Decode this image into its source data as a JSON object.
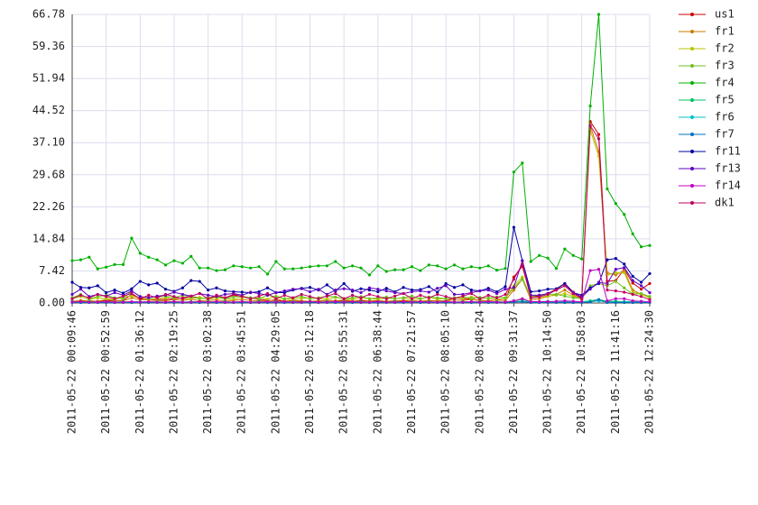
{
  "chart_data": {
    "type": "line",
    "categories": [
      "2011-05-22 00:09:46",
      null,
      null,
      null,
      "2011-05-22 00:52:59",
      null,
      null,
      null,
      "2011-05-22 01:36:12",
      null,
      null,
      null,
      "2011-05-22 02:19:25",
      null,
      null,
      null,
      "2011-05-22 03:02:38",
      null,
      null,
      null,
      "2011-05-22 03:45:51",
      null,
      null,
      null,
      "2011-05-22 04:29:05",
      null,
      null,
      null,
      "2011-05-22 05:12:18",
      null,
      null,
      null,
      "2011-05-22 05:55:31",
      null,
      null,
      null,
      "2011-05-22 06:38:44",
      null,
      null,
      null,
      "2011-05-22 07:21:57",
      null,
      null,
      null,
      "2011-05-22 08:05:10",
      null,
      null,
      null,
      "2011-05-22 08:48:24",
      null,
      null,
      null,
      "2011-05-22 09:31:37",
      null,
      null,
      null,
      "2011-05-22 10:14:50",
      null,
      null,
      null,
      "2011-05-22 10:58:03",
      null,
      null,
      null,
      "2011-05-22 11:41:16",
      null,
      null,
      null,
      "2011-05-22 12:24:30"
    ],
    "ylim": [
      0,
      66.78
    ],
    "yticks": [
      {
        "value": 0,
        "label": "0.00"
      },
      7.42,
      14.84,
      22.26,
      29.68,
      {
        "value": 37.1,
        "label": "37.10"
      },
      44.52,
      51.94,
      59.36,
      66.78
    ],
    "grid": true,
    "series": [
      {
        "name": "us1",
        "color": "#cc0000",
        "values": [
          0.4,
          0.5,
          0.5,
          0.4,
          0.5,
          0.5,
          0.6,
          2.0,
          1.0,
          0.8,
          0.8,
          0.8,
          1.0,
          1.2,
          1.5,
          1.2,
          1.0,
          1.5,
          1.2,
          1.8,
          1.4,
          1.2,
          0.8,
          0.6,
          0.6,
          0.5,
          0.5,
          0.4,
          0.4,
          0.4,
          0.6,
          0.5,
          0.5,
          0.4,
          0.6,
          0.5,
          0.4,
          0.4,
          0.5,
          0.4,
          0.5,
          0.4,
          0.5,
          0.5,
          0.5,
          1.2,
          1.0,
          0.9,
          0.6,
          0.5,
          0.7,
          0.6,
          6.0,
          8.5,
          1.5,
          1.6,
          2.2,
          3.2,
          4.5,
          2.5,
          1.2,
          42.0,
          39.0,
          5.0,
          5.2,
          7.8,
          4.6,
          3.2,
          4.5
        ]
      },
      {
        "name": "fr1",
        "color": "#cc7a00",
        "values": [
          0.3,
          0.6,
          0.5,
          0.4,
          0.8,
          0.6,
          0.5,
          1.2,
          0.8,
          0.7,
          0.6,
          0.5,
          0.8,
          0.6,
          0.9,
          0.5,
          0.6,
          0.7,
          0.5,
          0.6,
          0.8,
          0.6,
          0.5,
          0.4,
          0.9,
          0.5,
          0.6,
          0.5,
          0.4,
          0.5,
          0.6,
          0.5,
          0.7,
          0.5,
          0.4,
          0.5,
          0.6,
          0.4,
          0.5,
          0.6,
          0.5,
          0.4,
          0.6,
          0.5,
          0.5,
          0.7,
          0.6,
          0.8,
          0.6,
          0.5,
          0.7,
          0.6,
          3.0,
          5.5,
          0.8,
          1.0,
          1.5,
          2.0,
          3.0,
          1.8,
          0.8,
          41.0,
          35.0,
          7.0,
          6.5,
          7.5,
          3.0,
          2.0,
          1.5
        ]
      },
      {
        "name": "fr2",
        "color": "#b8c400",
        "values": [
          1.0,
          1.5,
          0.8,
          1.2,
          1.0,
          0.8,
          1.4,
          1.6,
          1.2,
          0.9,
          1.0,
          1.2,
          1.4,
          1.0,
          1.1,
          1.3,
          0.9,
          1.2,
          1.0,
          0.8,
          1.4,
          1.0,
          1.2,
          0.9,
          1.6,
          1.0,
          0.8,
          1.1,
          1.2,
          1.0,
          0.9,
          1.3,
          1.0,
          0.8,
          1.2,
          1.0,
          0.9,
          1.1,
          1.0,
          1.2,
          0.8,
          1.0,
          1.3,
          0.9,
          1.0,
          1.2,
          1.1,
          1.4,
          1.0,
          1.2,
          0.9,
          1.1,
          4.0,
          6.0,
          1.2,
          1.4,
          1.6,
          1.8,
          2.2,
          1.5,
          1.0,
          40.0,
          34.0,
          6.5,
          7.0,
          7.0,
          2.5,
          2.0,
          1.2
        ]
      },
      {
        "name": "fr3",
        "color": "#70c020",
        "values": [
          1.2,
          2.0,
          1.0,
          1.5,
          1.8,
          1.2,
          1.0,
          2.8,
          1.5,
          1.2,
          1.4,
          1.6,
          1.2,
          1.8,
          1.4,
          1.0,
          1.2,
          1.5,
          1.0,
          1.4,
          1.6,
          1.2,
          1.0,
          1.8,
          1.4,
          1.0,
          1.2,
          1.5,
          1.0,
          1.2,
          1.6,
          1.4,
          1.0,
          1.2,
          1.5,
          1.0,
          1.2,
          1.4,
          1.0,
          1.2,
          1.6,
          1.0,
          1.4,
          1.2,
          1.0,
          1.2,
          1.5,
          1.0,
          1.3,
          1.1,
          1.4,
          1.2,
          3.5,
          5.5,
          1.5,
          1.8,
          2.0,
          2.0,
          1.6,
          1.2,
          1.0,
          4.0,
          4.5,
          4.0,
          5.0,
          3.5,
          2.0,
          2.2,
          1.5
        ]
      },
      {
        "name": "fr4",
        "color": "#00b000",
        "values": [
          9.8,
          10,
          10.6,
          7.9,
          8.3,
          8.9,
          8.9,
          15,
          11.5,
          10.6,
          10,
          8.8,
          9.8,
          9.2,
          10.8,
          8.1,
          8.1,
          7.5,
          7.7,
          8.6,
          8.4,
          8.1,
          8.4,
          6.7,
          9.6,
          7.9,
          7.9,
          8.1,
          8.4,
          8.6,
          8.6,
          9.6,
          8.1,
          8.6,
          8.1,
          6.5,
          8.6,
          7.3,
          7.7,
          7.7,
          8.4,
          7.5,
          8.8,
          8.6,
          7.9,
          8.8,
          7.9,
          8.4,
          8.1,
          8.6,
          7.6,
          8.0,
          30.3,
          32.4,
          9.6,
          11,
          10.4,
          8,
          12.5,
          11,
          10.2,
          45.6,
          66.78,
          26.4,
          23,
          20.5,
          16,
          13,
          13.3
        ]
      },
      {
        "name": "fr5",
        "color": "#00c060",
        "values": [
          0.3,
          0.2,
          0.3,
          0.2,
          0.3,
          0.2,
          0.3,
          0.2,
          0.3,
          0.2,
          0.3,
          0.2,
          0.3,
          0.2,
          0.3,
          0.2,
          0.3,
          0.2,
          0.3,
          0.2,
          0.3,
          0.2,
          0.3,
          0.2,
          0.3,
          0.2,
          0.3,
          0.2,
          0.3,
          0.2,
          0.3,
          0.2,
          0.3,
          0.2,
          0.3,
          0.2,
          0.3,
          0.2,
          0.3,
          0.2,
          0.3,
          0.2,
          0.3,
          0.2,
          0.3,
          0.2,
          0.3,
          0.2,
          0.3,
          0.2,
          0.3,
          0.2,
          0.5,
          0.8,
          0.3,
          0.3,
          0.4,
          0.3,
          0.4,
          0.3,
          0.3,
          0.5,
          0.8,
          0.4,
          0.4,
          0.3,
          0.3,
          0.3,
          0.3
        ]
      },
      {
        "name": "fr6",
        "color": "#00c0c0",
        "values": [
          0.2,
          0.1,
          0.2,
          0.1,
          0.2,
          0.1,
          0.2,
          0.1,
          0.2,
          0.1,
          0.2,
          0.1,
          0.2,
          0.1,
          0.2,
          0.1,
          0.2,
          0.1,
          0.2,
          0.1,
          0.2,
          0.1,
          0.2,
          0.1,
          0.2,
          0.1,
          0.2,
          0.1,
          0.2,
          0.1,
          0.2,
          0.1,
          0.2,
          0.1,
          0.2,
          0.1,
          0.2,
          0.1,
          0.2,
          0.1,
          0.2,
          0.1,
          0.2,
          0.1,
          0.2,
          0.1,
          0.2,
          0.1,
          0.2,
          0.1,
          0.2,
          0.1,
          0.3,
          0.4,
          0.2,
          0.2,
          0.2,
          0.2,
          0.2,
          0.2,
          0.2,
          0.3,
          0.5,
          0.2,
          0.2,
          0.2,
          0.2,
          0.2,
          0.2
        ]
      },
      {
        "name": "fr7",
        "color": "#0070c0",
        "values": [
          0.1,
          0.1,
          0.1,
          0.1,
          0.1,
          0.1,
          0.1,
          0.1,
          0.1,
          0.1,
          0.1,
          0.1,
          0.1,
          0.1,
          0.1,
          0.1,
          0.1,
          0.1,
          0.1,
          0.1,
          0.1,
          0.1,
          0.1,
          0.1,
          0.1,
          0.1,
          0.1,
          0.1,
          0.1,
          0.1,
          0.1,
          0.1,
          0.1,
          0.1,
          0.1,
          0.1,
          0.1,
          0.1,
          0.1,
          0.1,
          0.1,
          0.1,
          0.1,
          0.1,
          0.1,
          0.1,
          0.1,
          0.1,
          0.1,
          0.1,
          0.1,
          0.1,
          0.2,
          0.3,
          0.1,
          0.1,
          0.1,
          0.1,
          0.1,
          0.1,
          0.1,
          0.2,
          0.8,
          0.1,
          0.1,
          0.1,
          0.1,
          0.1,
          0.1
        ]
      },
      {
        "name": "fr11",
        "color": "#0000a0",
        "values": [
          4.8,
          3.6,
          3.5,
          4.0,
          2.4,
          3.0,
          2.3,
          3.3,
          5.0,
          4.2,
          4.6,
          3.2,
          2.7,
          3.5,
          5.2,
          5.0,
          3.0,
          3.5,
          2.8,
          2.6,
          2.5,
          2.4,
          2.6,
          3.5,
          2.4,
          2.4,
          3.0,
          3.4,
          3.6,
          3.0,
          4.2,
          2.8,
          4.5,
          2.7,
          3.3,
          3.0,
          2.6,
          3.4,
          2.6,
          3.6,
          3.0,
          3.1,
          3.8,
          2.5,
          4.5,
          3.6,
          4.2,
          3.0,
          2.8,
          3.4,
          2.6,
          3.8,
          17.5,
          9.8,
          2.6,
          2.8,
          3.2,
          3.3,
          4.5,
          2.4,
          1.8,
          3.5,
          4.5,
          10.0,
          10.3,
          9.0,
          6.2,
          4.8,
          6.8
        ]
      },
      {
        "name": "fr13",
        "color": "#6000c0",
        "values": [
          2.0,
          3.2,
          1.5,
          2.0,
          1.6,
          2.4,
          1.8,
          2.8,
          1.5,
          1.2,
          1.6,
          1.8,
          2.5,
          2.0,
          1.6,
          2.2,
          1.8,
          1.5,
          2.0,
          2.2,
          1.8,
          2.5,
          2.2,
          1.8,
          2.4,
          2.8,
          3.2,
          3.3,
          2.6,
          3.2,
          2.0,
          3.0,
          3.3,
          3.0,
          2.4,
          3.5,
          3.2,
          2.8,
          2.4,
          2.2,
          2.6,
          2.8,
          2.5,
          3.4,
          4.0,
          2.0,
          2.0,
          2.4,
          2.8,
          3.0,
          2.2,
          3.2,
          3.6,
          9.8,
          1.8,
          1.8,
          2.2,
          3.0,
          4.0,
          2.4,
          1.4,
          3.2,
          4.8,
          4.5,
          7.8,
          8.2,
          5.2,
          4.0,
          2.4
        ]
      },
      {
        "name": "fr14",
        "color": "#c000c0",
        "values": [
          0.2,
          0.3,
          0.2,
          0.2,
          0.3,
          0.2,
          0.2,
          0.3,
          0.2,
          0.3,
          0.2,
          0.2,
          0.3,
          0.2,
          0.2,
          0.3,
          0.2,
          0.3,
          0.2,
          0.2,
          0.3,
          0.2,
          0.2,
          0.3,
          0.2,
          0.3,
          0.2,
          0.2,
          0.3,
          0.2,
          0.2,
          0.3,
          0.2,
          0.3,
          0.2,
          0.2,
          0.3,
          0.2,
          0.2,
          0.3,
          0.2,
          0.3,
          0.2,
          0.2,
          0.3,
          0.2,
          0.2,
          0.3,
          0.2,
          0.3,
          0.2,
          0.2,
          0.5,
          1.0,
          0.3,
          0.3,
          0.3,
          0.4,
          0.5,
          0.4,
          0.3,
          7.5,
          7.8,
          0.5,
          1.0,
          1.0,
          0.5,
          0.4,
          0.3
        ]
      },
      {
        "name": "dk1",
        "color": "#c00060",
        "values": [
          1.0,
          1.8,
          1.2,
          2.0,
          1.5,
          1.0,
          1.6,
          2.2,
          1.0,
          1.8,
          1.2,
          2.0,
          1.5,
          1.0,
          1.6,
          2.2,
          1.0,
          1.8,
          1.2,
          2.0,
          1.5,
          1.0,
          1.6,
          2.2,
          1.0,
          1.8,
          1.2,
          2.0,
          1.5,
          1.0,
          1.6,
          2.2,
          1.0,
          1.8,
          1.2,
          2.0,
          1.5,
          1.0,
          1.6,
          2.2,
          1.0,
          1.8,
          1.2,
          2.0,
          1.5,
          1.0,
          1.6,
          2.2,
          1.0,
          1.8,
          1.2,
          2.0,
          5.5,
          9.0,
          1.2,
          1.4,
          2.0,
          3.0,
          4.0,
          2.2,
          1.0,
          41.0,
          38.0,
          3.0,
          2.8,
          2.5,
          2.0,
          1.5,
          0.8
        ]
      }
    ]
  }
}
